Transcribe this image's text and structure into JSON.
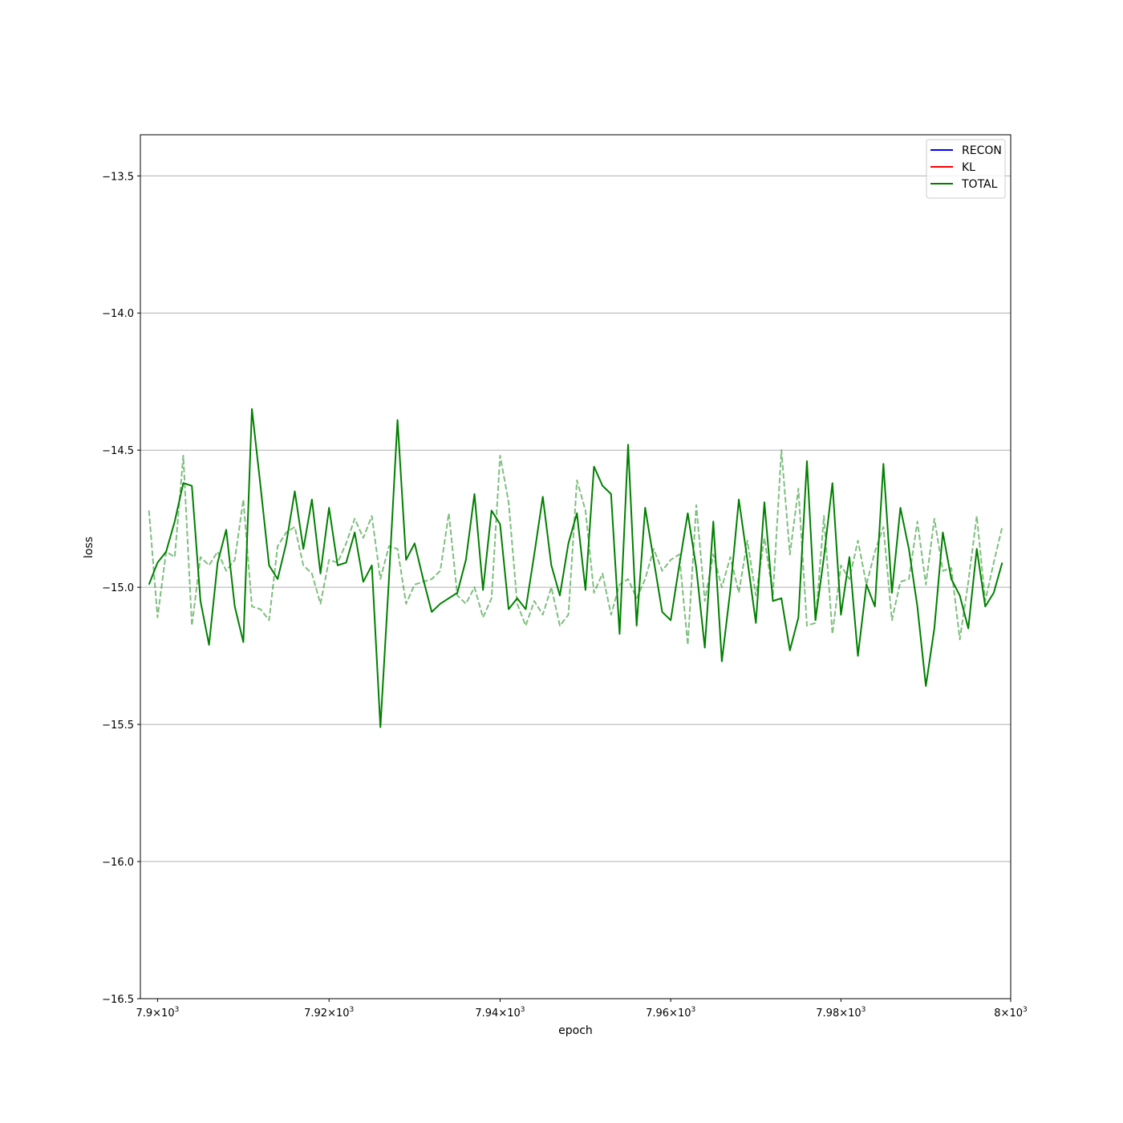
{
  "chart_data": {
    "type": "line",
    "xlabel": "epoch",
    "ylabel": "loss",
    "xscale": "log",
    "xlim": [
      7898,
      8000
    ],
    "ylim": [
      -16.5,
      -13.35
    ],
    "grid": "y-major",
    "legend_placement": "top-right",
    "x_ticks": [
      {
        "value": 7900,
        "mantissa": "7.9",
        "exp": "3"
      },
      {
        "value": 7920,
        "mantissa": "7.92",
        "exp": "3"
      },
      {
        "value": 7940,
        "mantissa": "7.94",
        "exp": "3"
      },
      {
        "value": 7960,
        "mantissa": "7.96",
        "exp": "3"
      },
      {
        "value": 7980,
        "mantissa": "7.98",
        "exp": "3"
      },
      {
        "value": 8000,
        "mantissa": "8",
        "exp": "3"
      }
    ],
    "y_ticks": [
      {
        "value": -13.5,
        "label": "−13.5"
      },
      {
        "value": -14.0,
        "label": "−14.0"
      },
      {
        "value": -14.5,
        "label": "−14.5"
      },
      {
        "value": -15.0,
        "label": "−15.0"
      },
      {
        "value": -15.5,
        "label": "−15.5"
      },
      {
        "value": -16.0,
        "label": "−16.0"
      },
      {
        "value": -16.5,
        "label": "−16.5"
      }
    ],
    "legend": [
      {
        "label": "RECON",
        "color": "#0000ff"
      },
      {
        "label": "KL",
        "color": "#ff0000"
      },
      {
        "label": "TOTAL",
        "color": "#008000"
      }
    ],
    "x": [
      7899,
      7900,
      7901,
      7902,
      7903,
      7904,
      7905,
      7906,
      7907,
      7908,
      7909,
      7910,
      7911,
      7912,
      7913,
      7914,
      7915,
      7916,
      7917,
      7918,
      7919,
      7920,
      7921,
      7922,
      7923,
      7924,
      7925,
      7926,
      7927,
      7928,
      7929,
      7930,
      7931,
      7932,
      7933,
      7934,
      7935,
      7936,
      7937,
      7938,
      7939,
      7940,
      7941,
      7942,
      7943,
      7944,
      7945,
      7946,
      7947,
      7948,
      7949,
      7950,
      7951,
      7952,
      7953,
      7954,
      7955,
      7956,
      7957,
      7958,
      7959,
      7960,
      7961,
      7962,
      7963,
      7964,
      7965,
      7966,
      7967,
      7968,
      7969,
      7970,
      7971,
      7972,
      7973,
      7974,
      7975,
      7976,
      7977,
      7978,
      7979,
      7980,
      7981,
      7982,
      7983,
      7984,
      7985,
      7986,
      7987,
      7988,
      7989,
      7990,
      7991,
      7992,
      7993,
      7994,
      7995,
      7996,
      7997,
      7998,
      7999
    ],
    "series": [
      {
        "legend_index": 2,
        "color": "#008000",
        "style": "solid",
        "values": [
          -14.99,
          -14.91,
          -14.87,
          -14.76,
          -14.62,
          -14.63,
          -15.05,
          -15.21,
          -14.91,
          -14.79,
          -15.07,
          -15.2,
          -14.35,
          -14.63,
          -14.92,
          -14.97,
          -14.84,
          -14.65,
          -14.86,
          -14.68,
          -14.95,
          -14.71,
          -14.92,
          -14.91,
          -14.8,
          -14.98,
          -14.92,
          -15.51,
          -14.97,
          -14.39,
          -14.9,
          -14.84,
          -14.97,
          -15.09,
          -15.06,
          -15.04,
          -15.02,
          -14.9,
          -14.66,
          -15.01,
          -14.72,
          -14.77,
          -15.08,
          -15.04,
          -15.08,
          -14.88,
          -14.67,
          -14.92,
          -15.03,
          -14.84,
          -14.73,
          -15.01,
          -14.56,
          -14.63,
          -14.66,
          -15.17,
          -14.48,
          -15.14,
          -14.71,
          -14.9,
          -15.09,
          -15.12,
          -14.92,
          -14.73,
          -14.93,
          -15.22,
          -14.76,
          -15.27,
          -15.01,
          -14.68,
          -14.9,
          -15.13,
          -14.69,
          -15.05,
          -15.04,
          -15.23,
          -15.11,
          -14.54,
          -15.12,
          -14.89,
          -14.62,
          -15.1,
          -14.89,
          -15.25,
          -14.99,
          -15.07,
          -14.55,
          -15.02,
          -14.71,
          -14.86,
          -15.07,
          -15.36,
          -15.15,
          -14.8,
          -14.97,
          -15.03,
          -15.15,
          -14.86,
          -15.07,
          -15.02,
          -14.91
        ]
      },
      {
        "legend_index": null,
        "color": "#008000",
        "style": "dashed",
        "opacity": 0.5,
        "values": [
          -14.72,
          -15.11,
          -14.87,
          -14.89,
          -14.52,
          -15.14,
          -14.89,
          -14.92,
          -14.87,
          -14.94,
          -14.9,
          -14.68,
          -15.07,
          -15.08,
          -15.12,
          -14.85,
          -14.8,
          -14.78,
          -14.92,
          -14.95,
          -15.06,
          -14.9,
          -14.91,
          -14.84,
          -14.75,
          -14.82,
          -14.74,
          -14.97,
          -14.85,
          -14.86,
          -15.06,
          -14.99,
          -14.98,
          -14.97,
          -14.94,
          -14.73,
          -15.03,
          -15.06,
          -15.0,
          -15.11,
          -15.04,
          -14.52,
          -14.69,
          -15.06,
          -15.14,
          -15.05,
          -15.1,
          -15.0,
          -15.14,
          -15.1,
          -14.61,
          -14.72,
          -15.02,
          -14.95,
          -15.1,
          -14.99,
          -14.97,
          -15.04,
          -14.97,
          -14.86,
          -14.94,
          -14.9,
          -14.88,
          -15.21,
          -14.7,
          -15.05,
          -14.88,
          -15.0,
          -14.89,
          -15.02,
          -14.83,
          -15.03,
          -14.82,
          -15.03,
          -14.5,
          -14.88,
          -14.64,
          -15.14,
          -15.13,
          -14.74,
          -15.17,
          -14.92,
          -14.97,
          -14.83,
          -14.99,
          -14.87,
          -14.78,
          -15.12,
          -14.98,
          -14.97,
          -14.76,
          -14.99,
          -14.75,
          -14.94,
          -14.93,
          -15.19,
          -14.98,
          -14.74,
          -15.05,
          -14.91,
          -14.78
        ]
      }
    ]
  }
}
